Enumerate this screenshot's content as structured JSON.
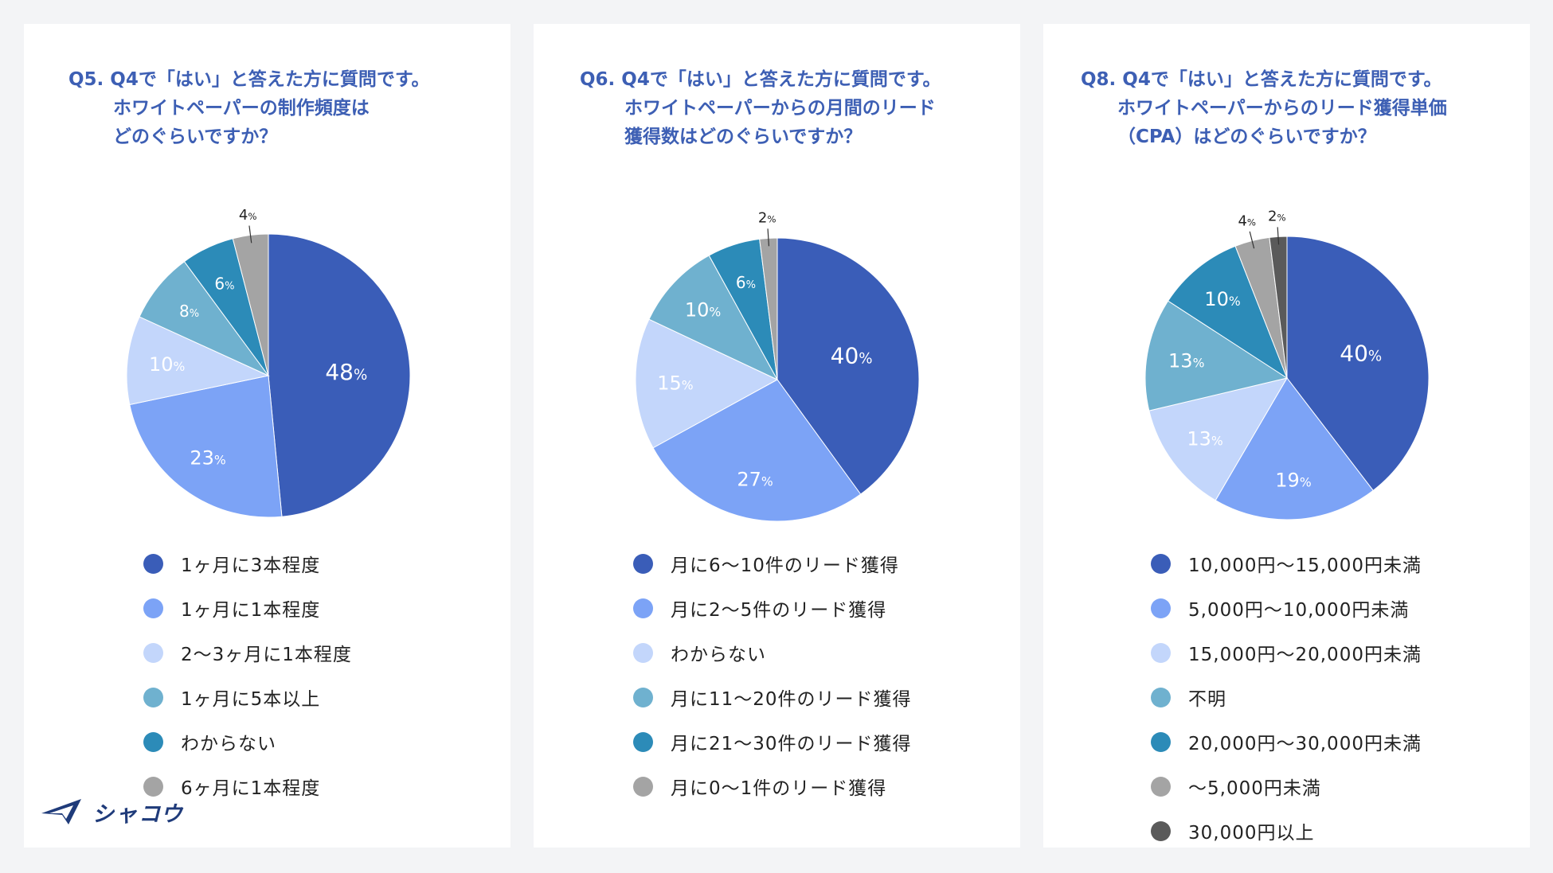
{
  "colors": {
    "slices": [
      "#3a5db8",
      "#7ca3f6",
      "#c3d6fb",
      "#6fb1cf",
      "#2c8bb8",
      "#a4a4a4",
      "#5a5a5a"
    ],
    "title": "#3d5fb4"
  },
  "chart_data": [
    {
      "type": "pie",
      "title_lines": [
        "Q5. Q4で「はい」と答えた方に質問です。",
        "ホワイトペーパーの制作頻度は",
        "どのぐらいですか？"
      ],
      "categories": [
        "1ヶ月に3本程度",
        "1ヶ月に1本程度",
        "2〜3ヶ月に1本程度",
        "1ヶ月に5本以上",
        "わからない",
        "6ヶ月に1本程度"
      ],
      "values": [
        48,
        23,
        10,
        8,
        6,
        4
      ],
      "value_labels": [
        "48",
        "23",
        "10",
        "8",
        "6",
        "4"
      ],
      "unit": "%"
    },
    {
      "type": "pie",
      "title_lines": [
        "Q6. Q4で「はい」と答えた方に質問です。",
        "ホワイトペーパーからの月間のリード",
        "獲得数はどのぐらいですか？"
      ],
      "categories": [
        "月に6〜10件のリード獲得",
        "月に2〜5件のリード獲得",
        "わからない",
        "月に11〜20件のリード獲得",
        "月に21〜30件のリード獲得",
        "月に0〜1件のリード獲得"
      ],
      "values": [
        40,
        27,
        15,
        10,
        6,
        2
      ],
      "value_labels": [
        "40",
        "27",
        "15",
        "10",
        "6",
        "2"
      ],
      "unit": "%"
    },
    {
      "type": "pie",
      "title_lines": [
        "Q8. Q4で「はい」と答えた方に質問です。",
        "ホワイトペーパーからのリード獲得単価",
        "（CPA）はどのぐらいですか？"
      ],
      "categories": [
        "10,000円〜15,000円未満",
        "5,000円〜10,000円未満",
        "15,000円〜20,000円未満",
        "不明",
        "20,000円〜30,000円未満",
        "〜5,000円未満",
        "30,000円以上"
      ],
      "values": [
        40,
        19,
        13,
        13,
        10,
        4,
        2
      ],
      "value_labels": [
        "40",
        "19",
        "13",
        "13",
        "10",
        "4",
        "2"
      ],
      "unit": "%"
    }
  ],
  "brand": {
    "logo_text": "シャコウ"
  }
}
